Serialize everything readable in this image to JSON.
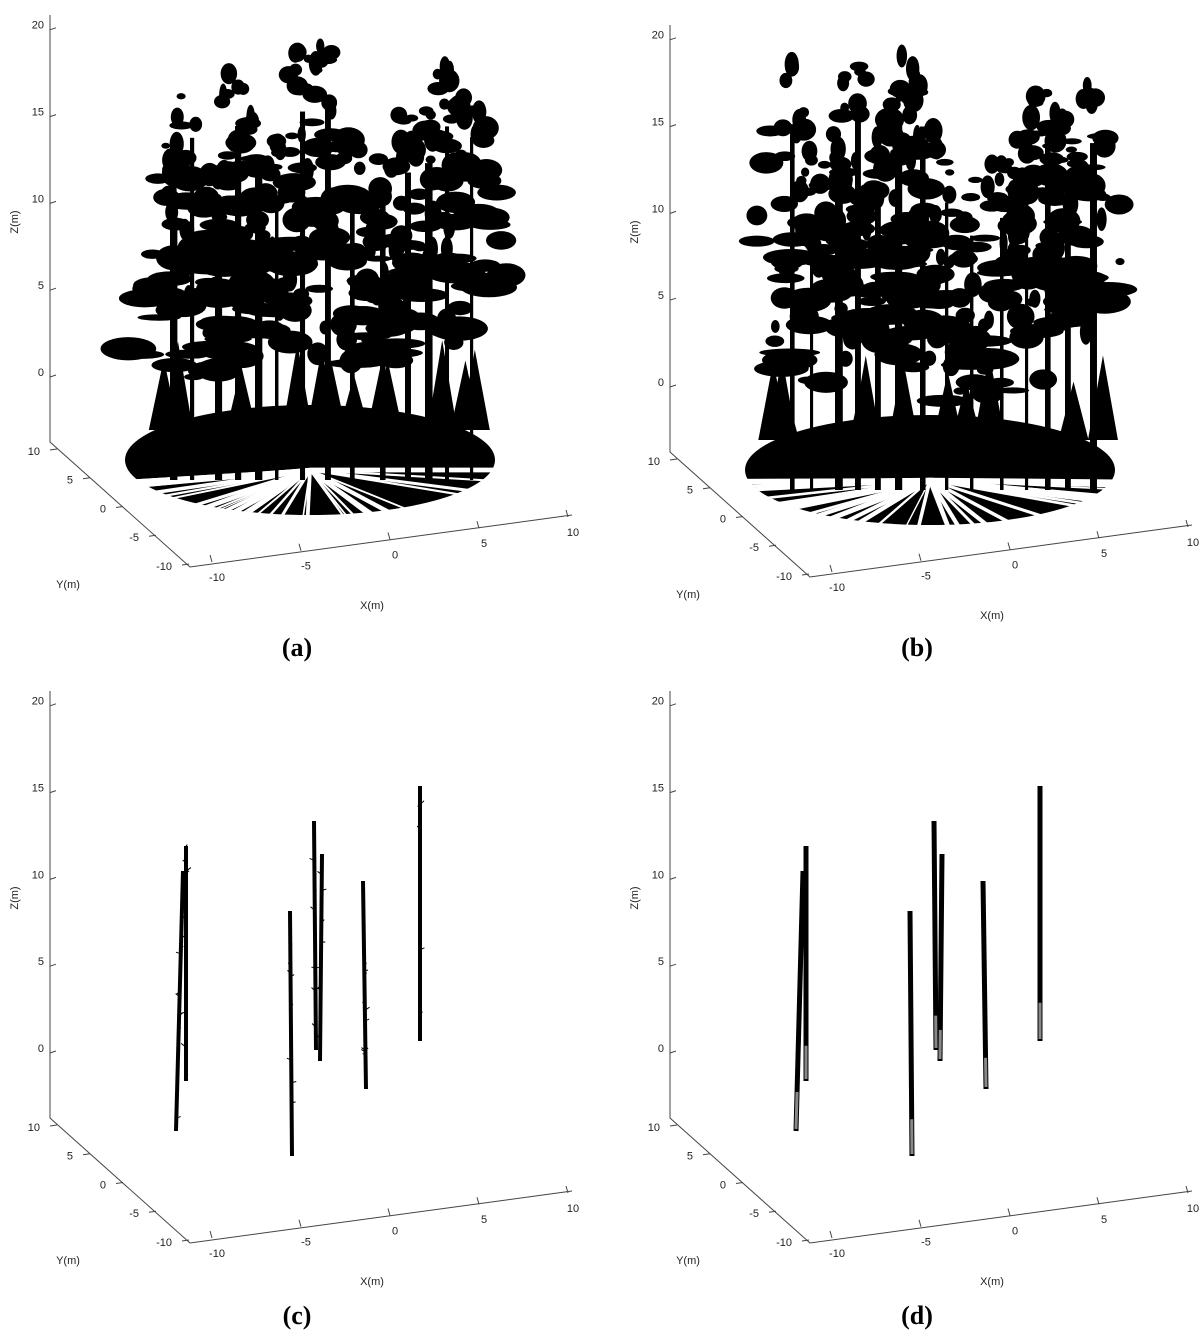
{
  "panels": [
    {
      "label": "(a)",
      "z_axis": {
        "title": "Z(m)",
        "ticks": [
          0,
          5,
          10,
          15,
          20
        ]
      },
      "y_axis": {
        "title": "Y(m)",
        "ticks": [
          10,
          5,
          0,
          -5,
          -10
        ]
      },
      "x_axis": {
        "title": "X(m)",
        "ticks": [
          -10,
          -5,
          0,
          5,
          10
        ]
      }
    },
    {
      "label": "(b)",
      "z_axis": {
        "title": "Z(m)",
        "ticks": [
          0,
          5,
          10,
          15,
          20
        ]
      },
      "y_axis": {
        "title": "Y(m)",
        "ticks": [
          10,
          5,
          0,
          -5,
          -10
        ]
      },
      "x_axis": {
        "title": "X(m)",
        "ticks": [
          -10,
          -5,
          0,
          5,
          10
        ]
      }
    },
    {
      "label": "(c)",
      "z_axis": {
        "title": "Z(m)",
        "ticks": [
          0,
          5,
          10,
          15,
          20
        ]
      },
      "y_axis": {
        "title": "Y(m)",
        "ticks": [
          10,
          5,
          0,
          -5,
          -10
        ]
      },
      "x_axis": {
        "title": "X(m)",
        "ticks": [
          -10,
          -5,
          0,
          5,
          10
        ]
      }
    },
    {
      "label": "(d)",
      "z_axis": {
        "title": "Z(m)",
        "ticks": [
          0,
          5,
          10,
          15,
          20
        ]
      },
      "y_axis": {
        "title": "Y(m)",
        "ticks": [
          10,
          5,
          0,
          -5,
          -10
        ]
      },
      "x_axis": {
        "title": "X(m)",
        "ticks": [
          -10,
          -5,
          0,
          5,
          10
        ]
      }
    }
  ]
}
